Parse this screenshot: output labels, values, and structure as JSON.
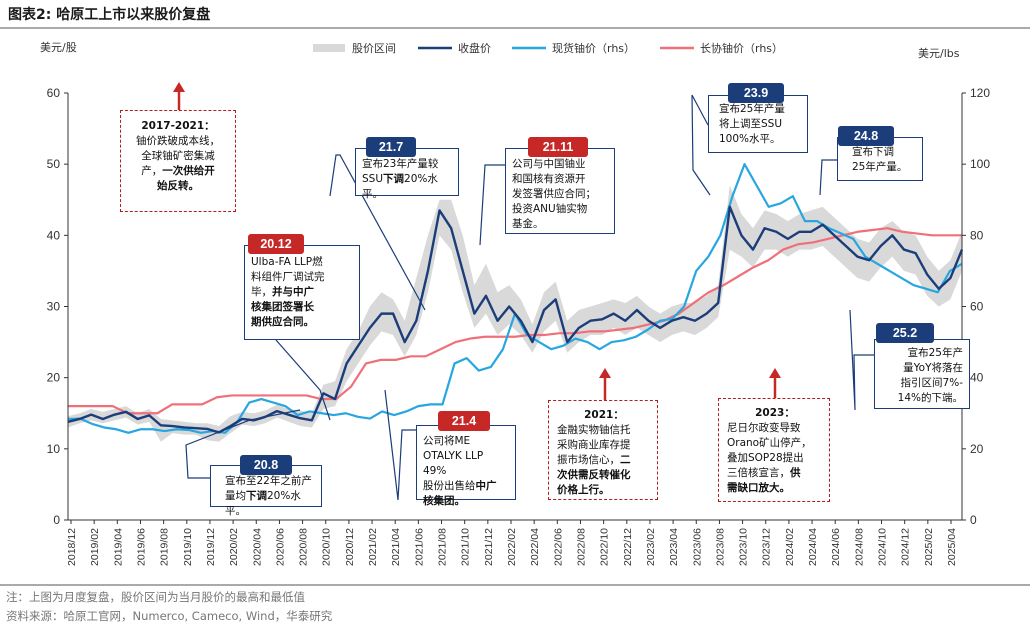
{
  "page": {
    "title": "图表2:   哈原工上市以来股价复盘",
    "note": "注：上图为月度复盘，股价区间为当月股价的最高和最低值",
    "source": "资料来源：哈原工官网，Numerco, Cameco, Wind，华泰研究"
  },
  "colors": {
    "range": "#d9d9d9",
    "close": "#1b3d7a",
    "spot": "#27a6e0",
    "lt": "#f0707a",
    "navy": "#1b3d7a",
    "red": "#c62828"
  },
  "chart_data": {
    "type": "line",
    "left_unit": "美元/股",
    "right_unit": "美元/lbs",
    "y_left": {
      "min": 0,
      "max": 60,
      "ticks": [
        0,
        10,
        20,
        30,
        40,
        50,
        60
      ]
    },
    "y_right": {
      "min": 0,
      "max": 120,
      "ticks": [
        0,
        20,
        40,
        60,
        80,
        100,
        120
      ]
    },
    "x_labels": [
      "2018/12",
      "2019/02",
      "2019/04",
      "2019/06",
      "2019/08",
      "2019/10",
      "2019/12",
      "2020/02",
      "2020/04",
      "2020/06",
      "2020/08",
      "2020/10",
      "2020/12",
      "2021/02",
      "2021/04",
      "2021/06",
      "2021/08",
      "2021/10",
      "2021/12",
      "2022/02",
      "2022/04",
      "2022/06",
      "2022/08",
      "2022/10",
      "2022/12",
      "2023/02",
      "2023/04",
      "2023/06",
      "2023/08",
      "2023/10",
      "2023/12",
      "2024/02",
      "2024/04",
      "2024/06",
      "2024/08",
      "2024/10",
      "2024/12",
      "2025/02",
      "2025/04"
    ],
    "legend": [
      "股价区间",
      "收盘价",
      "现货铀价（rhs）",
      "长协铀价（rhs）"
    ],
    "series": [
      {
        "name": "收盘价",
        "axis": "left",
        "values": [
          13.8,
          14.2,
          14.8,
          14.2,
          14.8,
          15.2,
          14.2,
          14.7,
          13.3,
          13.2,
          13.0,
          12.9,
          12.8,
          12.3,
          13.2,
          14.2,
          14.0,
          14.5,
          15.3,
          14.8,
          14.3,
          14.0,
          17.8,
          17.0,
          22.0,
          24.5,
          27.0,
          29.0,
          29.0,
          25.0,
          28.0,
          35.0,
          43.5,
          41.0,
          35.0,
          29.0,
          31.5,
          28.0,
          30.0,
          28.0,
          25.0,
          29.5,
          31.0,
          25.0,
          27.0,
          28.0,
          28.2,
          29.0,
          28.0,
          29.5,
          28.0,
          27.0,
          28.0,
          28.5,
          28.0,
          29.0,
          30.5,
          44.0,
          40.0,
          38.0,
          41.0,
          40.5,
          39.5,
          40.5,
          40.5,
          41.5,
          40.0,
          38.5,
          37.0,
          36.5,
          38.5,
          40.0,
          38.0,
          37.5,
          34.5,
          32.5,
          34.0,
          38.0
        ]
      },
      {
        "name": "现货铀价（rhs）",
        "axis": "right",
        "values": [
          28.4,
          28.5,
          27.0,
          26.0,
          25.5,
          24.5,
          25.5,
          25.5,
          25.0,
          25.5,
          25.3,
          24.5,
          25.0,
          24.5,
          27.5,
          33.0,
          34.0,
          33.0,
          32.0,
          29.5,
          30.5,
          30.0,
          29.5,
          30.0,
          29.0,
          28.5,
          30.5,
          29.5,
          30.5,
          32.0,
          32.5,
          32.5,
          44.0,
          45.5,
          42.0,
          43.0,
          48.0,
          58.0,
          52.0,
          50.0,
          48.0,
          49.0,
          51.0,
          50.0,
          48.0,
          50.0,
          50.5,
          51.5,
          53.5,
          56.0,
          56.5,
          60.0,
          70.0,
          74.0,
          80.0,
          91.0,
          100.0,
          94.0,
          88.0,
          89.0,
          91.0,
          84.0,
          84.0,
          82.0,
          80.5,
          79.0,
          74.0,
          72.0,
          70.0,
          68.0,
          66.0,
          65.0,
          64.0,
          70.0,
          72.0
        ]
      },
      {
        "name": "长协铀价（rhs）",
        "axis": "right",
        "values": [
          32.0,
          32.0,
          32.0,
          32.0,
          30.0,
          30.0,
          30.0,
          32.5,
          32.5,
          32.5,
          34.5,
          35.0,
          35.0,
          35.0,
          35.0,
          35.0,
          35.0,
          34.0,
          34.0,
          37.5,
          44.0,
          45.0,
          45.0,
          46.0,
          46.0,
          48.0,
          50.0,
          51.0,
          51.5,
          51.5,
          51.5,
          52.0,
          52.0,
          52.5,
          52.5,
          53.0,
          53.0,
          53.5,
          54.0,
          55.0,
          56.0,
          58.0,
          61.0,
          64.0,
          66.0,
          68.5,
          71.0,
          73.0,
          76.0,
          77.5,
          78.0,
          79.0,
          80.0,
          81.0,
          81.5,
          82.0,
          81.0,
          80.5,
          80.0,
          80.0,
          80.0
        ]
      },
      {
        "name": "股价区间",
        "axis": "left",
        "values": [
          [
            13.0,
            14.6
          ],
          [
            13.6,
            15.0
          ],
          [
            14.0,
            15.6
          ],
          [
            13.6,
            15.2
          ],
          [
            14.0,
            15.6
          ],
          [
            14.4,
            16.0
          ],
          [
            13.4,
            15.0
          ],
          [
            13.8,
            15.6
          ],
          [
            11.0,
            14.2
          ],
          [
            12.2,
            14.0
          ],
          [
            12.0,
            13.8
          ],
          [
            12.0,
            13.6
          ],
          [
            11.2,
            13.6
          ],
          [
            11.0,
            13.2
          ],
          [
            12.2,
            14.6
          ],
          [
            13.4,
            15.2
          ],
          [
            13.2,
            15.0
          ],
          [
            13.6,
            15.4
          ],
          [
            14.4,
            16.2
          ],
          [
            13.8,
            15.6
          ],
          [
            13.2,
            15.4
          ],
          [
            13.0,
            15.0
          ],
          [
            15.6,
            19.0
          ],
          [
            16.0,
            19.5
          ],
          [
            19.5,
            24.0
          ],
          [
            22.0,
            26.5
          ],
          [
            24.5,
            30.0
          ],
          [
            26.5,
            32.0
          ],
          [
            26.0,
            31.0
          ],
          [
            23.0,
            28.0
          ],
          [
            26.0,
            34.0
          ],
          [
            32.0,
            40.0
          ],
          [
            40.0,
            45.0
          ],
          [
            38.0,
            45.0
          ],
          [
            32.0,
            40.0
          ],
          [
            27.0,
            33.0
          ],
          [
            29.0,
            36.0
          ],
          [
            26.0,
            32.0
          ],
          [
            27.5,
            33.0
          ],
          [
            26.0,
            31.0
          ],
          [
            23.5,
            27.5
          ],
          [
            26.5,
            32.0
          ],
          [
            28.0,
            33.5
          ],
          [
            23.5,
            28.0
          ],
          [
            25.0,
            29.5
          ],
          [
            26.0,
            30.0
          ],
          [
            26.0,
            30.5
          ],
          [
            27.0,
            31.0
          ],
          [
            26.0,
            30.5
          ],
          [
            27.0,
            31.5
          ],
          [
            26.0,
            30.0
          ],
          [
            25.0,
            29.0
          ],
          [
            26.0,
            30.0
          ],
          [
            26.5,
            30.5
          ],
          [
            26.0,
            30.5
          ],
          [
            27.0,
            31.5
          ],
          [
            28.5,
            33.0
          ],
          [
            38.0,
            47.0
          ],
          [
            37.0,
            43.0
          ],
          [
            35.5,
            41.0
          ],
          [
            38.0,
            43.5
          ],
          [
            38.0,
            43.0
          ],
          [
            37.0,
            42.0
          ],
          [
            38.0,
            43.0
          ],
          [
            38.0,
            43.5
          ],
          [
            38.5,
            44.0
          ],
          [
            37.0,
            42.5
          ],
          [
            35.5,
            41.0
          ],
          [
            34.0,
            39.5
          ],
          [
            33.5,
            39.0
          ],
          [
            35.5,
            41.0
          ],
          [
            37.0,
            42.0
          ],
          [
            35.0,
            40.5
          ],
          [
            34.5,
            40.0
          ],
          [
            31.5,
            37.0
          ],
          [
            30.0,
            35.0
          ],
          [
            31.0,
            36.5
          ],
          [
            35.0,
            40.5
          ]
        ]
      }
    ]
  },
  "annotations": {
    "a2017": {
      "title": "2017-2021：",
      "l1": "铀价跌破成本线，",
      "l2": "全球铀矿密集减",
      "l3": "产，",
      "l3b": "一次供给开",
      "l4b": "始反转。"
    },
    "a2012": {
      "badge": "20.12",
      "l1": "Ulba-FA LLP燃",
      "l2": "料组件厂调试完",
      "l3": "毕，",
      "l3b": "并与中广",
      "l4b": "核集团签署长",
      "l5b": "期供应合同。"
    },
    "a217": {
      "badge": "21.7",
      "l1": "宣布23年产量较",
      "l2a": "SSU",
      "l2b": "下调",
      "l2c": "20%水平。"
    },
    "a2111": {
      "badge": "21.11",
      "l1": "公司与中国铀业",
      "l2": "和国核有资源开",
      "l3": "发签署供应合同；",
      "l4": "投资ANU铀实物",
      "l5": "基金。"
    },
    "a239": {
      "badge": "23.9",
      "l1": "宣布25年产量",
      "l2": "将上调至SSU",
      "l3": "100%水平。"
    },
    "a248": {
      "badge": "24.8",
      "l1": "宣布下调",
      "l2": "25年产量。"
    },
    "a252": {
      "badge": "25.2",
      "l1": "宣布25年产",
      "l2": "量YoY将落在",
      "l3": "指引区间7%-",
      "l4": "14%的下端。"
    },
    "a214": {
      "badge": "21.4",
      "l1": "公司将ME",
      "l2": "OTALYK LLP 49%",
      "l3a": "股份出售给",
      "l3b": "中广",
      "l4b": "核集团。"
    },
    "a208": {
      "badge": "20.8",
      "l1": "宣布至22年之前产",
      "l2a": "量均",
      "l2b": "下调",
      "l2c": "20%水平。"
    },
    "a2021": {
      "title": "2021：",
      "l1": "金融实物铀信托",
      "l2": "采购商业库存提",
      "l3": "振市场信心，",
      "l3b": "二",
      "l4b": "次供需反转催化",
      "l5b": "价格上行。"
    },
    "a2023": {
      "title": "2023：",
      "l1": "尼日尔政变导致",
      "l2": "Orano矿山停产，",
      "l3": "叠加SOP28提出",
      "l4": "三倍核宣言，",
      "l4b": "供",
      "l5b": "需缺口放大。"
    }
  }
}
